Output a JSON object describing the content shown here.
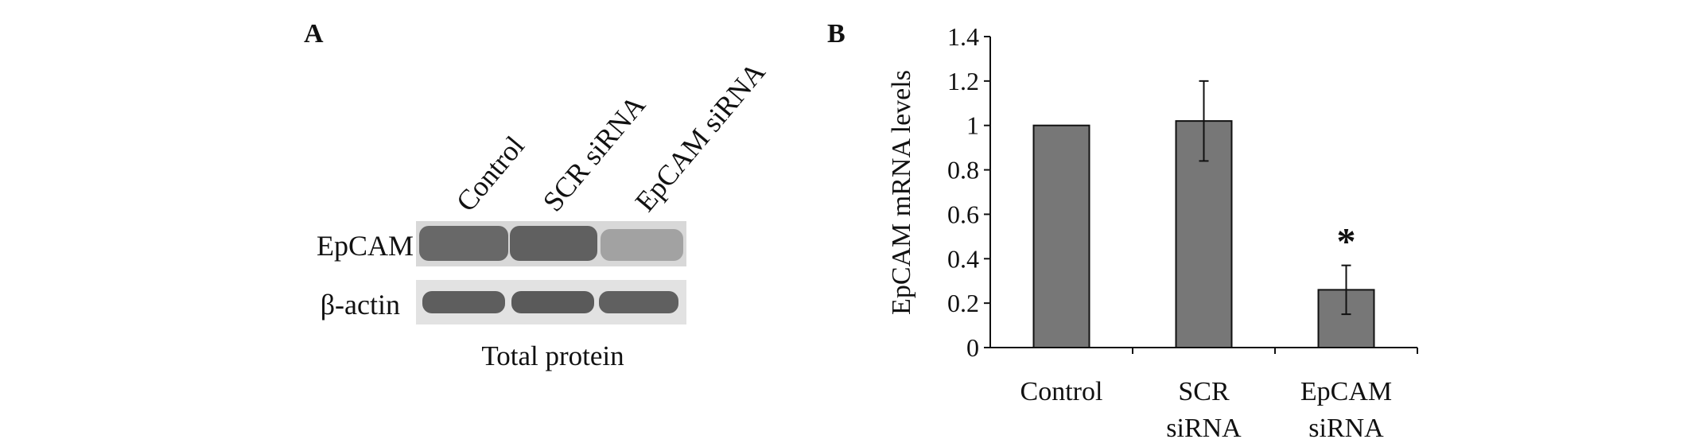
{
  "panel_a": {
    "letter": "A",
    "lanes": [
      "Control",
      "SCR siRNA",
      "EpCAM siRNA"
    ],
    "rows": [
      {
        "label": "EpCAM",
        "band_intensity": [
          0.85,
          0.9,
          0.25
        ]
      },
      {
        "label": "β-actin",
        "band_intensity": [
          0.9,
          0.9,
          0.9
        ]
      }
    ],
    "caption": "Total protein"
  },
  "chart_data": {
    "type": "bar",
    "panel_letter": "B",
    "categories": [
      [
        "Control"
      ],
      [
        "SCR",
        "siRNA"
      ],
      [
        "EpCAM",
        "siRNA"
      ]
    ],
    "values": [
      1.0,
      1.02,
      0.26
    ],
    "errors": [
      0.0,
      0.18,
      0.11
    ],
    "significance": [
      "",
      "",
      "*"
    ],
    "ylabel": "EpCAM mRNA levels",
    "ylim": [
      0,
      1.4
    ],
    "yticks": [
      "0",
      "0.2",
      "0.4",
      "0.6",
      "0.8",
      "1",
      "1.2",
      "1.4"
    ],
    "bar_color": "#777777",
    "grid": false
  }
}
